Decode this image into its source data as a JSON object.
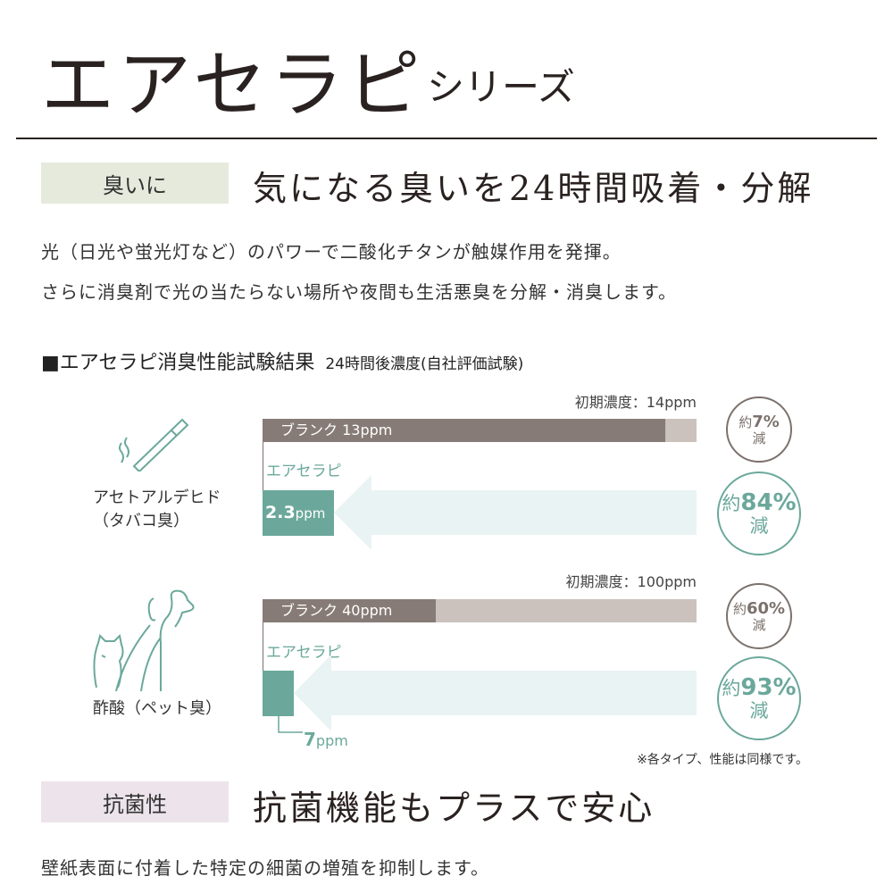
{
  "title": "エアセラピ",
  "subtitle": "シリーズ",
  "section1": {
    "tag": "臭いに",
    "headline": "気になる臭いを24時間吸着・分解",
    "lines": [
      "光（日光や蛍光灯など）のパワーで二酸化チタンが触媒作用を発揮。",
      "さらに消臭剤で光の当たらない場所や夜間も生活悪臭を分解・消臭します。"
    ]
  },
  "test": {
    "heading": "■エアセラピ消臭性能試験結果",
    "heading_note": "24時間後濃度(自社評価試験)",
    "rows": [
      {
        "name": "アセトアルデヒド",
        "sub": "（タバコ臭）",
        "icon": "cigarette-icon",
        "initial_label": "初期濃度：14ppm",
        "initial": 14,
        "blank_label": "ブランク 13ppm",
        "blank": 13,
        "product_label": "エアセラピ",
        "product_value": "2.3",
        "product_unit": "ppm",
        "product": 2.3,
        "blank_reduction": {
          "pre": "約",
          "num": "7%",
          "post": "減"
        },
        "product_reduction": {
          "pre": "約",
          "num": "84%",
          "post": "減"
        }
      },
      {
        "name": "酢酸",
        "sub": "（ペット臭）",
        "icon": "dog-cat-icon",
        "initial_label": "初期濃度：100ppm",
        "initial": 100,
        "blank_label": "ブランク 40ppm",
        "blank": 40,
        "product_label": "エアセラピ",
        "product_value": "7",
        "product_unit": "ppm",
        "product": 7,
        "blank_reduction": {
          "pre": "約",
          "num": "60%",
          "post": "減"
        },
        "product_reduction": {
          "pre": "約",
          "num": "93%",
          "post": "減"
        }
      }
    ],
    "note": "※各タイプ、性能は同様です。",
    "colors": {
      "blank": "#867b76",
      "initial": "#cbc2bd",
      "product": "#6ba89b",
      "arrow": "#eaf3f3"
    }
  },
  "section2": {
    "tag": "抗菌性",
    "headline": "抗菌機能もプラスで安心",
    "lines": [
      "壁紙表面に付着した特定の細菌の増殖を抑制します。"
    ]
  }
}
